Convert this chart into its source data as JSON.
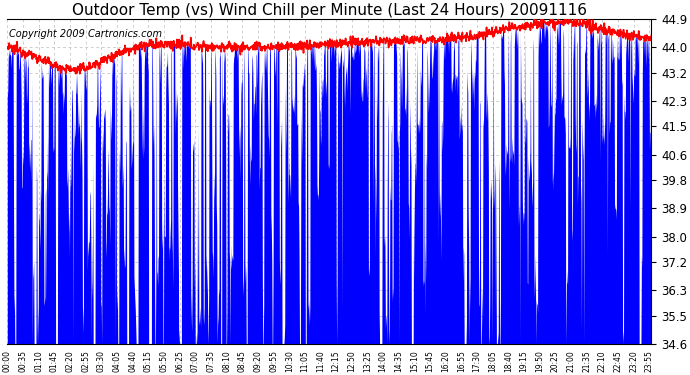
{
  "title": "Outdoor Temp (vs) Wind Chill per Minute (Last 24 Hours) 20091116",
  "copyright": "Copyright 2009 Cartronics.com",
  "yticks": [
    34.6,
    35.5,
    36.3,
    37.2,
    38.0,
    38.9,
    39.8,
    40.6,
    41.5,
    42.3,
    43.2,
    44.0,
    44.9
  ],
  "ymin": 34.6,
  "ymax": 44.9,
  "bg_color": "#ffffff",
  "plot_bg_color": "#ffffff",
  "grid_color": "#bbbbbb",
  "blue_color": "#0000ff",
  "red_color": "#ff0000",
  "title_fontsize": 11,
  "copyright_fontsize": 7,
  "xtick_fontsize": 5.5,
  "ytick_fontsize": 8.5,
  "n_minutes": 1440,
  "xtick_step": 35
}
